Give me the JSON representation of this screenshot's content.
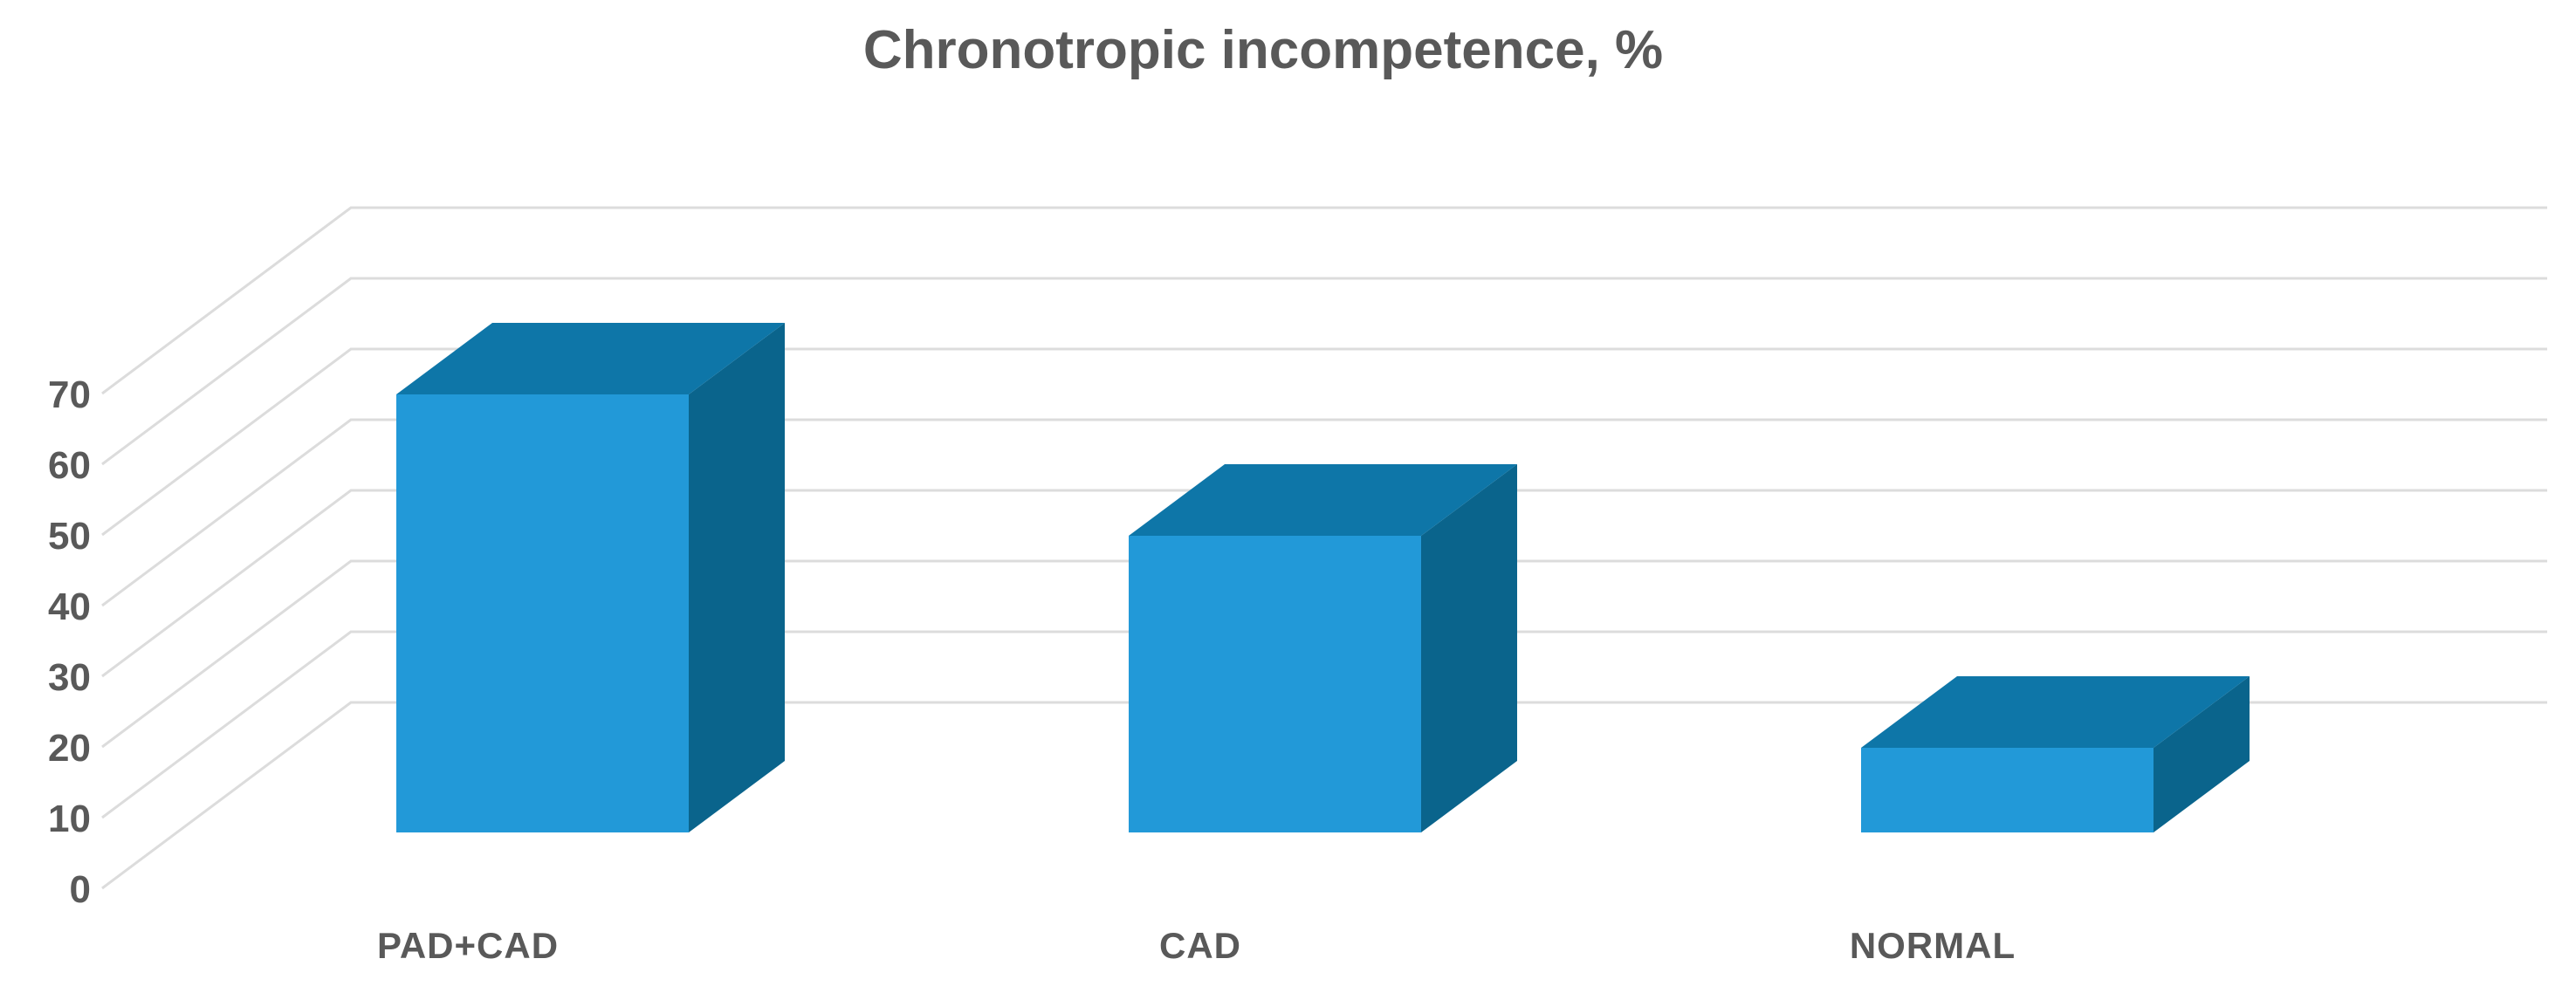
{
  "chart_data": {
    "type": "bar",
    "subtype": "3d-clustered-column",
    "title": "Chronotropic incompetence, %",
    "categories": [
      "PAD+CAD",
      "CAD",
      "NORMAL"
    ],
    "values": [
      62,
      42,
      12
    ],
    "series": [
      {
        "name": "Chronotropic incompetence, %",
        "values": [
          62,
          42,
          12
        ]
      }
    ],
    "xlabel": "",
    "ylabel": "",
    "ylim": [
      0,
      70
    ],
    "yticks": [
      0,
      10,
      20,
      30,
      40,
      50,
      60,
      70
    ],
    "grid": true,
    "legend": false,
    "background": "#FFFFFF",
    "colors": {
      "bar_front": "#2299D8",
      "bar_top": "#0E76A8",
      "bar_side": "#0A648C",
      "gridline": "#DCDCDC",
      "text": "#595959"
    }
  }
}
